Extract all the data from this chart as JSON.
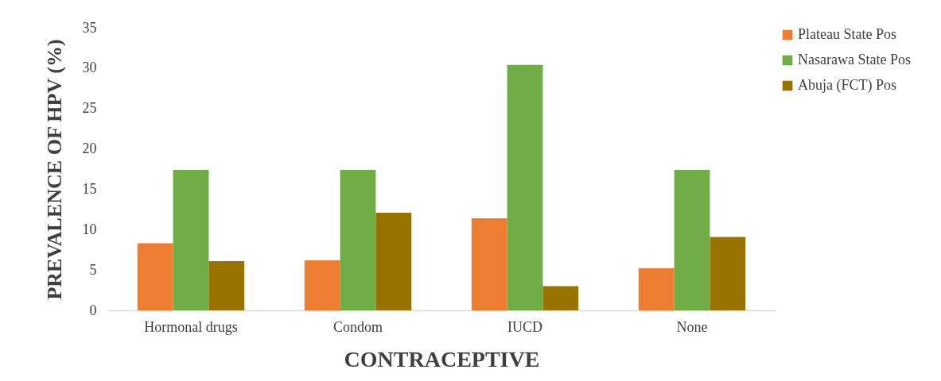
{
  "chart_data": {
    "type": "bar",
    "xlabel": "CONTRACEPTIVE",
    "ylabel": "PREVALENCE OF HPV (%)",
    "categories": [
      "Hormonal drugs",
      "Condom",
      "IUCD",
      "None"
    ],
    "series": [
      {
        "name": "Plateau State Pos",
        "color": "#ed7d31",
        "values": [
          8.3,
          6.2,
          11.4,
          5.2
        ]
      },
      {
        "name": "Nasarawa State Pos",
        "color": "#70ad47",
        "values": [
          17.4,
          17.4,
          30.4,
          17.4
        ]
      },
      {
        "name": "Abuja (FCT) Pos",
        "color": "#997300",
        "values": [
          6.1,
          12.1,
          3.0,
          9.1
        ]
      }
    ],
    "ylim": [
      0,
      35
    ],
    "yticks": [
      0,
      5,
      10,
      15,
      20,
      25,
      30,
      35
    ],
    "grid": false,
    "legend": "right"
  }
}
